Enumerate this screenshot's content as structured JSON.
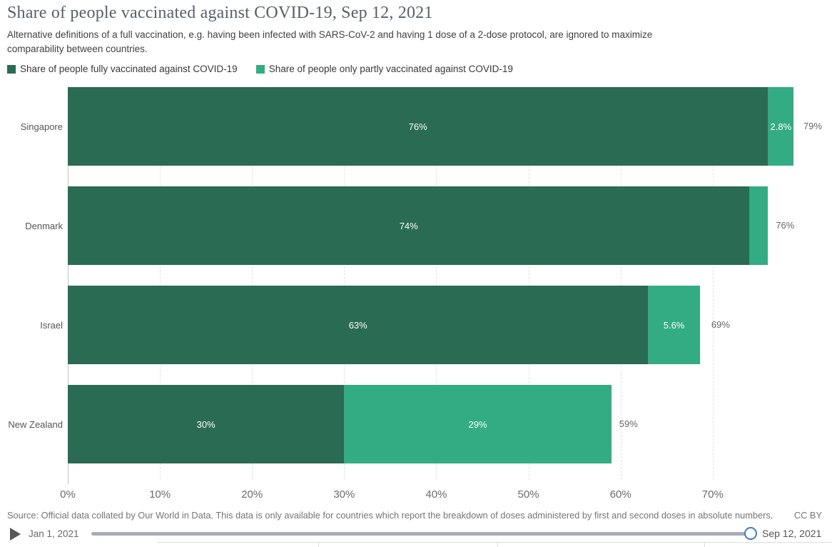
{
  "header": {
    "title": "Share of people vaccinated against COVID-19, Sep 12, 2021",
    "subtitle": "Alternative definitions of a full vaccination, e.g. having been infected with SARS-CoV-2 and having 1 dose of a 2-dose protocol, are ignored to maximize comparability between countries."
  },
  "legend": [
    {
      "label": "Share of people fully vaccinated against COVID-19",
      "color": "#2a6b53"
    },
    {
      "label": "Share of people only partly vaccinated against COVID-19",
      "color": "#33ab83"
    }
  ],
  "chart_data": {
    "type": "bar",
    "orientation": "horizontal",
    "stacked": true,
    "title": "Share of people vaccinated against COVID-19, Sep 12, 2021",
    "categories": [
      "Singapore",
      "Denmark",
      "Israel",
      "New Zealand"
    ],
    "series": [
      {
        "name": "Share of people fully vaccinated against COVID-19",
        "color": "#2a6b53",
        "values": [
          76,
          74,
          63,
          30
        ],
        "labels": [
          "76%",
          "74%",
          "63%",
          "30%"
        ]
      },
      {
        "name": "Share of people only partly vaccinated against COVID-19",
        "color": "#33ab83",
        "values": [
          2.8,
          2,
          5.6,
          29
        ],
        "labels": [
          "2.8%",
          "",
          "5.6%",
          "29%"
        ]
      }
    ],
    "totals": [
      79,
      76,
      69,
      59
    ],
    "total_labels": [
      "79%",
      "76%",
      "69%",
      "59%"
    ],
    "xlim": [
      0,
      79
    ],
    "x_ticks": [
      "0%",
      "10%",
      "20%",
      "30%",
      "40%",
      "50%",
      "60%",
      "70%"
    ],
    "grid": true,
    "legend_position": "top"
  },
  "footer": {
    "source": "Source: Official data collated by Our World in Data. This data is only available for countries which report the breakdown of doses administered by first and second doses in absolute numbers.",
    "license": "CC BY"
  },
  "timeline": {
    "start_label": "Jan 1, 2021",
    "end_label": "Sep 12, 2021",
    "handle_accent": "#3c7dc0"
  }
}
